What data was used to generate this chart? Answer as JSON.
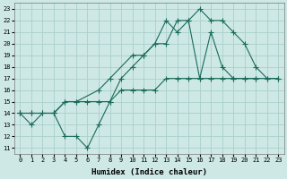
{
  "bg_color": "#cde8e5",
  "grid_color": "#aacfcc",
  "line_color": "#1a6b5a",
  "xlabel": "Humidex (Indice chaleur)",
  "xlim": [
    -0.5,
    23.5
  ],
  "ylim": [
    10.5,
    23.5
  ],
  "yticks": [
    11,
    12,
    13,
    14,
    15,
    16,
    17,
    18,
    19,
    20,
    21,
    22,
    23
  ],
  "xticks": [
    0,
    1,
    2,
    3,
    4,
    5,
    6,
    7,
    8,
    9,
    10,
    11,
    12,
    13,
    14,
    15,
    16,
    17,
    18,
    19,
    20,
    21,
    22,
    23
  ],
  "line1_x": [
    0,
    1,
    2,
    3,
    4,
    5,
    6,
    7,
    8,
    9,
    10,
    11,
    12,
    13,
    14,
    15,
    16,
    17,
    18,
    19,
    20,
    21
  ],
  "line1_y": [
    14,
    13,
    14,
    14,
    12,
    12,
    11,
    13,
    15,
    17,
    18,
    19,
    20,
    20,
    22,
    22,
    17,
    21,
    18,
    17,
    17,
    17
  ],
  "line2_x": [
    0,
    1,
    3,
    4,
    5,
    7,
    8,
    10,
    11,
    12,
    13,
    14,
    15,
    16,
    17,
    18,
    19,
    20,
    21,
    22,
    23
  ],
  "line2_y": [
    14,
    14,
    14,
    15,
    15,
    16,
    17,
    19,
    19,
    20,
    22,
    21,
    22,
    23,
    22,
    22,
    21,
    20,
    18,
    17,
    17
  ],
  "line3_x": [
    0,
    1,
    2,
    3,
    4,
    5,
    6,
    7,
    8,
    9,
    10,
    11,
    12,
    13,
    14,
    15,
    16,
    17,
    18,
    19,
    20,
    21,
    22,
    23
  ],
  "line3_y": [
    14,
    14,
    14,
    14,
    15,
    15,
    15,
    15,
    15,
    16,
    16,
    16,
    16,
    17,
    17,
    17,
    17,
    17,
    17,
    17,
    17,
    17,
    17,
    17
  ]
}
